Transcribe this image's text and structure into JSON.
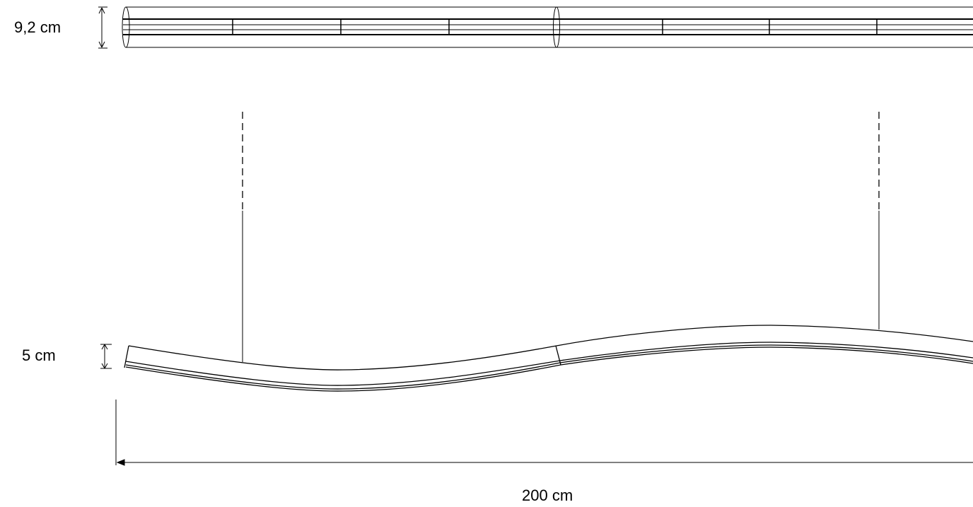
{
  "dimensions": {
    "diameter_label": "9,2 cm",
    "height_label": "5 cm",
    "length_label": "200 cm"
  },
  "colors": {
    "line": "#000000",
    "background": "#ffffff"
  }
}
